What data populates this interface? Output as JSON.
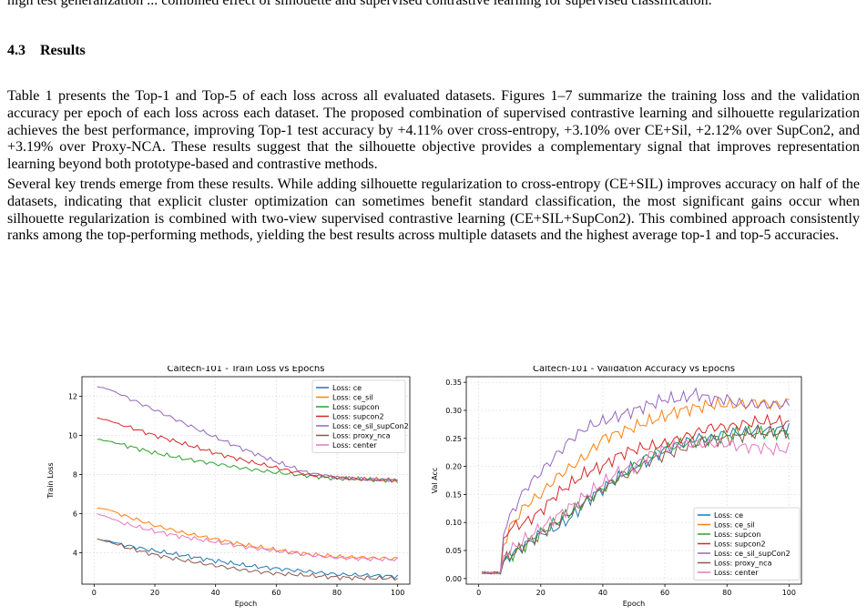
{
  "top_line": "high test generalization ... combined effect of silhouette and supervised contrastive learning for supervised classification.",
  "section": {
    "number": "4.3",
    "title": "Results"
  },
  "paragraphs": [
    "Table 1 presents the Top-1 and Top-5 of each loss across all evaluated datasets. Figures 1–7 summarize the training loss and the validation accuracy per epoch of each loss across each dataset. The proposed combination of supervised contrastive learning and silhouette regularization achieves the best performance, improving Top-1 test accuracy by +4.11% over cross-entropy, +3.10% over CE+Sil, +2.12% over SupCon2, and +3.19% over Proxy-NCA. These results suggest that the silhouette objective provides a complementary signal that improves representation learning beyond both prototype-based and contrastive methods.",
    "Several key trends emerge from these results. While adding silhouette regularization to cross-entropy (CE+SIL) improves accuracy on half of the datasets, indicating that explicit cluster optimization can sometimes benefit standard classification, the most significant gains occur when silhouette regularization is combined with two-view supervised contrastive learning (CE+SIL+SupCon2). This combined approach consistently ranks among the top-performing methods, yielding the best results across multiple datasets and the highest average top-1 and top-5 accuracies."
  ],
  "colors": {
    "ce": "#1f77b4",
    "ce_sil": "#ff7f0e",
    "supcon": "#2ca02c",
    "supcon2": "#d62728",
    "ce_sil_supCon2": "#9467bd",
    "proxy_nca": "#8c564b",
    "center": "#e377c2"
  },
  "chart_data": [
    {
      "type": "line",
      "title": "Caltech-101 - Train Loss vs Epochs",
      "xlabel": "Epoch",
      "ylabel": "Train Loss",
      "xlim": [
        -4,
        104
      ],
      "ylim": [
        2.4,
        13.0
      ],
      "xticks": [
        "0",
        "20",
        "40",
        "60",
        "80",
        "100"
      ],
      "yticks": [
        "4",
        "6",
        "8",
        "10",
        "12"
      ],
      "grid": true,
      "legend": "top-right",
      "x": [
        1,
        5,
        10,
        20,
        30,
        40,
        50,
        60,
        70,
        80,
        90,
        100
      ],
      "series": [
        {
          "name": "Loss: ce",
          "key": "ce",
          "values": [
            4.7,
            4.6,
            4.4,
            4.1,
            3.85,
            3.6,
            3.35,
            3.2,
            3.05,
            2.9,
            2.85,
            2.8
          ]
        },
        {
          "name": "Loss: ce_sil",
          "key": "ce_sil",
          "values": [
            6.3,
            6.2,
            5.9,
            5.4,
            5.0,
            4.7,
            4.4,
            4.15,
            3.95,
            3.8,
            3.75,
            3.7
          ]
        },
        {
          "name": "Loss: supcon",
          "key": "supcon",
          "values": [
            9.8,
            9.7,
            9.5,
            9.1,
            8.8,
            8.55,
            8.3,
            8.1,
            7.95,
            7.8,
            7.75,
            7.7
          ]
        },
        {
          "name": "Loss: supcon2",
          "key": "supcon2",
          "values": [
            10.9,
            10.75,
            10.5,
            10.0,
            9.55,
            9.1,
            8.7,
            8.35,
            8.0,
            7.85,
            7.75,
            7.7
          ]
        },
        {
          "name": "Loss: ce_sil_supCon2",
          "key": "ce_sil_supCon2",
          "values": [
            12.5,
            12.35,
            12.0,
            11.3,
            10.6,
            9.9,
            9.25,
            8.65,
            8.1,
            7.85,
            7.75,
            7.7
          ]
        },
        {
          "name": "Loss: proxy_nca",
          "key": "proxy_nca",
          "values": [
            4.7,
            4.55,
            4.3,
            3.9,
            3.6,
            3.35,
            3.1,
            2.95,
            2.85,
            2.75,
            2.7,
            2.7
          ]
        },
        {
          "name": "Loss: center",
          "key": "center",
          "values": [
            6.0,
            5.8,
            5.5,
            5.1,
            4.8,
            4.55,
            4.3,
            4.1,
            3.9,
            3.75,
            3.7,
            3.65
          ]
        }
      ]
    },
    {
      "type": "line",
      "title": "Caltech-101 - Validation Accuracy vs Epochs",
      "xlabel": "Epoch",
      "ylabel": "Val Acc",
      "xlim": [
        -4,
        104
      ],
      "ylim": [
        -0.01,
        0.36
      ],
      "xticks": [
        "0",
        "20",
        "40",
        "60",
        "80",
        "100"
      ],
      "yticks": [
        "0.00",
        "0.05",
        "0.10",
        "0.15",
        "0.20",
        "0.25",
        "0.30",
        "0.35"
      ],
      "grid": true,
      "legend": "bottom-right",
      "x": [
        1,
        7,
        8,
        10,
        15,
        20,
        25,
        30,
        35,
        40,
        45,
        50,
        55,
        60,
        65,
        70,
        75,
        80,
        85,
        90,
        95,
        100
      ],
      "series": [
        {
          "name": "Loss: ce",
          "key": "ce",
          "values": [
            0.01,
            0.01,
            0.03,
            0.04,
            0.06,
            0.08,
            0.09,
            0.11,
            0.14,
            0.16,
            0.18,
            0.2,
            0.21,
            0.23,
            0.24,
            0.25,
            0.25,
            0.26,
            0.26,
            0.265,
            0.265,
            0.27
          ]
        },
        {
          "name": "Loss: ce_sil",
          "key": "ce_sil",
          "values": [
            0.01,
            0.01,
            0.06,
            0.09,
            0.13,
            0.15,
            0.18,
            0.2,
            0.22,
            0.25,
            0.26,
            0.27,
            0.28,
            0.29,
            0.3,
            0.305,
            0.31,
            0.31,
            0.31,
            0.315,
            0.31,
            0.315
          ]
        },
        {
          "name": "Loss: supcon",
          "key": "supcon",
          "values": [
            0.01,
            0.01,
            0.03,
            0.04,
            0.06,
            0.08,
            0.1,
            0.12,
            0.14,
            0.16,
            0.18,
            0.2,
            0.22,
            0.23,
            0.24,
            0.245,
            0.25,
            0.255,
            0.26,
            0.26,
            0.26,
            0.26
          ]
        },
        {
          "name": "Loss: supcon2",
          "key": "supcon2",
          "values": [
            0.01,
            0.01,
            0.07,
            0.09,
            0.1,
            0.12,
            0.15,
            0.17,
            0.19,
            0.2,
            0.22,
            0.23,
            0.235,
            0.24,
            0.25,
            0.26,
            0.27,
            0.27,
            0.275,
            0.28,
            0.28,
            0.28
          ]
        },
        {
          "name": "Loss: ce_sil_supCon2",
          "key": "ce_sil_supCon2",
          "values": [
            0.01,
            0.01,
            0.08,
            0.11,
            0.16,
            0.19,
            0.22,
            0.25,
            0.27,
            0.28,
            0.29,
            0.3,
            0.31,
            0.32,
            0.32,
            0.33,
            0.32,
            0.32,
            0.31,
            0.31,
            0.31,
            0.31
          ]
        },
        {
          "name": "Loss: proxy_nca",
          "key": "proxy_nca",
          "values": [
            0.01,
            0.01,
            0.03,
            0.04,
            0.06,
            0.08,
            0.1,
            0.12,
            0.14,
            0.16,
            0.18,
            0.19,
            0.21,
            0.22,
            0.23,
            0.24,
            0.245,
            0.25,
            0.255,
            0.26,
            0.26,
            0.26
          ]
        },
        {
          "name": "Loss: center",
          "key": "center",
          "values": [
            0.01,
            0.01,
            0.04,
            0.05,
            0.07,
            0.09,
            0.11,
            0.13,
            0.15,
            0.17,
            0.19,
            0.2,
            0.22,
            0.23,
            0.24,
            0.24,
            0.24,
            0.24,
            0.235,
            0.235,
            0.23,
            0.23
          ]
        }
      ]
    }
  ]
}
